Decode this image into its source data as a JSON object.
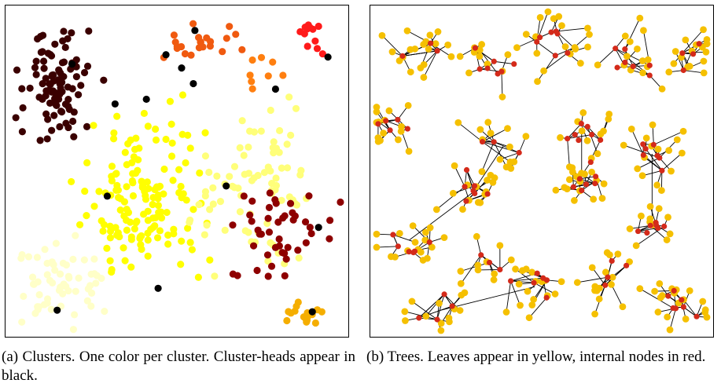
{
  "figure": {
    "panels": [
      {
        "id": "a",
        "caption": "(a) Clusters. One color per cluster. Cluster-heads appear in black."
      },
      {
        "id": "b",
        "caption": "(b) Trees. Leaves appear in yellow, internal nodes in red."
      }
    ]
  },
  "colors": {
    "cluster_head": "#000000",
    "leaf": "#f5c000",
    "internal_node": "#d42a1a",
    "edge": "#000000",
    "cluster_palette": [
      "#3a0000",
      "#f05a10",
      "#ff1a1a",
      "#ffff00",
      "#ffff7a",
      "#ffffc8",
      "#8e0000",
      "#f5ae00",
      "#ff7f10"
    ]
  }
}
